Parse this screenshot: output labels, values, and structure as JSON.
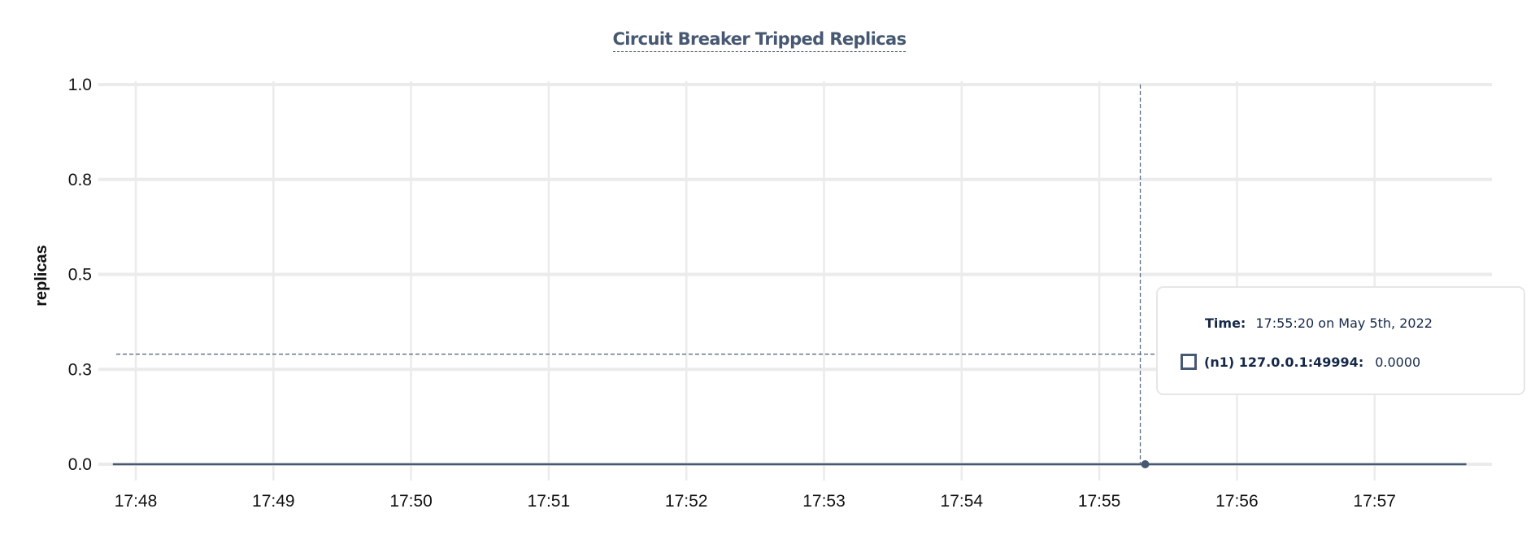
{
  "chart_data": {
    "type": "line",
    "title": "Circuit Breaker Tripped Replicas",
    "xlabel": "",
    "ylabel": "replicas",
    "ylim": [
      0,
      1
    ],
    "y_ticks": [
      {
        "value": 1.0,
        "label": "1.0"
      },
      {
        "value": 0.75,
        "label": "0.8"
      },
      {
        "value": 0.5,
        "label": "0.5"
      },
      {
        "value": 0.25,
        "label": "0.3"
      },
      {
        "value": 0.0,
        "label": "0.0"
      }
    ],
    "x_ticks": [
      "17:48",
      "17:49",
      "17:50",
      "17:51",
      "17:52",
      "17:53",
      "17:54",
      "17:55",
      "17:56",
      "17:57"
    ],
    "xlim": [
      "17:47:44",
      "17:57:50"
    ],
    "grid": true,
    "series": [
      {
        "name": "(n1) 127.0.0.1:49994",
        "color": "#475872",
        "x": [
          "17:47:50",
          "17:57:40"
        ],
        "y": [
          0,
          0
        ]
      }
    ],
    "hover": {
      "x": "17:55:20",
      "y": 0,
      "cursor_y": 0.29
    }
  },
  "tooltip": {
    "time_label": "Time:",
    "time_value": "17:55:20 on May 5th, 2022",
    "series_label": "(n1) 127.0.0.1:49994:",
    "series_value": "0.0000"
  },
  "colors": {
    "series": "#475872",
    "grid": "#ebebeb",
    "text": "#152849"
  }
}
